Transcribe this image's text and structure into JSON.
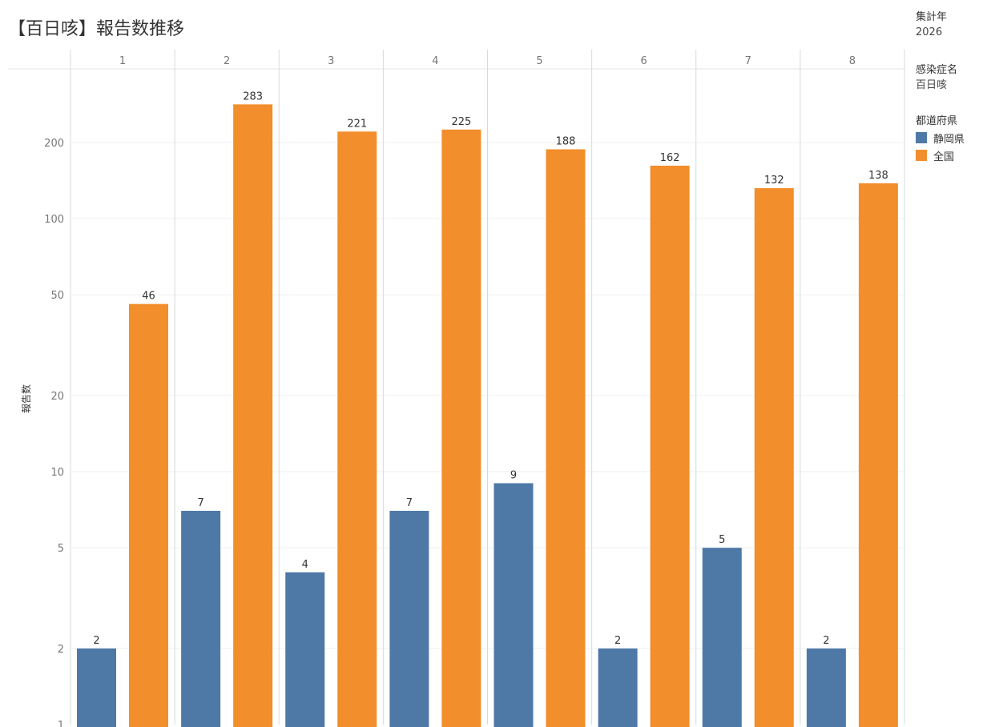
{
  "title": "【百日咳】報告数推移",
  "filters": {
    "year_title": "集計年",
    "year_value": "2026",
    "disease_title": "感染症名",
    "disease_value": "百日咳",
    "pref_title": "都道府県"
  },
  "legend": [
    {
      "name": "静岡県",
      "color": "#4e79a7"
    },
    {
      "name": "全国",
      "color": "#f28e2b"
    }
  ],
  "chart_data": {
    "type": "bar",
    "title": "【百日咳】報告数推移",
    "ylabel": "報告数",
    "xlabel": "",
    "yscale": "log",
    "ylim": [
      1,
      400
    ],
    "yticks": [
      1,
      2,
      5,
      10,
      20,
      50,
      100,
      200
    ],
    "categories": [
      "1",
      "2",
      "3",
      "4",
      "5",
      "6",
      "7",
      "8"
    ],
    "series": [
      {
        "name": "静岡県",
        "color": "#4e79a7",
        "values": [
          2,
          7,
          4,
          7,
          9,
          2,
          5,
          2
        ]
      },
      {
        "name": "全国",
        "color": "#f28e2b",
        "values": [
          46,
          283,
          221,
          225,
          188,
          162,
          132,
          138
        ]
      }
    ],
    "grid": true,
    "legend_position": "right"
  }
}
